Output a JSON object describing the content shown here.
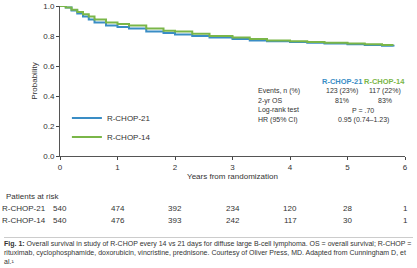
{
  "chart_data": {
    "type": "line",
    "x_label": "Years from randomization",
    "y_label": "Probability",
    "x": [
      0,
      0.1,
      0.2,
      0.3,
      0.4,
      0.5,
      0.6,
      0.8,
      1.0,
      1.2,
      1.5,
      1.8,
      2.0,
      2.3,
      2.6,
      3.0,
      3.3,
      3.6,
      4.0,
      4.3,
      4.6,
      5.0,
      5.3,
      5.6,
      5.8
    ],
    "series": [
      {
        "name": "R-CHOP-21",
        "color": "#3a8dc5",
        "line_style": "step",
        "values": [
          1.0,
          0.99,
          0.97,
          0.95,
          0.93,
          0.91,
          0.89,
          0.87,
          0.86,
          0.85,
          0.83,
          0.82,
          0.81,
          0.8,
          0.79,
          0.78,
          0.77,
          0.765,
          0.76,
          0.755,
          0.75,
          0.745,
          0.74,
          0.735,
          0.73
        ]
      },
      {
        "name": "R-CHOP-14",
        "color": "#7ab648",
        "line_style": "step",
        "values": [
          1.0,
          0.99,
          0.975,
          0.96,
          0.945,
          0.93,
          0.91,
          0.89,
          0.88,
          0.87,
          0.85,
          0.835,
          0.83,
          0.815,
          0.8,
          0.79,
          0.78,
          0.77,
          0.765,
          0.76,
          0.755,
          0.75,
          0.745,
          0.74,
          0.74
        ]
      }
    ],
    "xlim": [
      0,
      6
    ],
    "xticks": [
      0,
      1,
      2,
      3,
      4,
      5,
      6
    ],
    "ylim": [
      0,
      1.0
    ],
    "yticks": [
      {
        "value": 0,
        "label": "0.0"
      },
      {
        "value": 0.2,
        "label": "0.2"
      },
      {
        "value": 0.4,
        "label": "0.4"
      },
      {
        "value": 0.6,
        "label": "0.6"
      },
      {
        "value": 0.8,
        "label": "0.8"
      },
      {
        "value": 1.0,
        "label": "1.0"
      }
    ],
    "grid": false,
    "legend": "lower left",
    "stats_table": {
      "headers": [
        "R-CHOP-21",
        "R-CHOP-14"
      ],
      "rows": [
        [
          "Events, n (%)",
          "123 (23%)",
          "117 (22%)"
        ],
        [
          "2-yr OS",
          "81%",
          "83%"
        ],
        [
          "Log-rank test",
          "P = .70"
        ],
        [
          "HR (95% CI)",
          "0.95 (0.74–1.23)"
        ]
      ]
    },
    "risk_table": {
      "title": "Patients at risk",
      "times": [
        0,
        1,
        2,
        3,
        4,
        5,
        6
      ],
      "rows": [
        {
          "name": "R-CHOP-21",
          "values": [
            "540",
            "474",
            "392",
            "234",
            "120",
            "28",
            "1"
          ]
        },
        {
          "name": "R-CHOP-14",
          "values": [
            "540",
            "476",
            "393",
            "242",
            "117",
            "30",
            "1"
          ]
        }
      ]
    },
    "caption_label": "Fig. 1:",
    "caption": "Overall survival in study of R-CHOP every 14 vs 21 days for diffuse large B-cell lymphoma. OS = overall survival; R-CHOP = rituximab, cyclophosphamide, doxorubicin, vincristine, prednisone. Courtesy of Oliver Press, MD. Adapted from Cunningham D, et al.¹"
  }
}
